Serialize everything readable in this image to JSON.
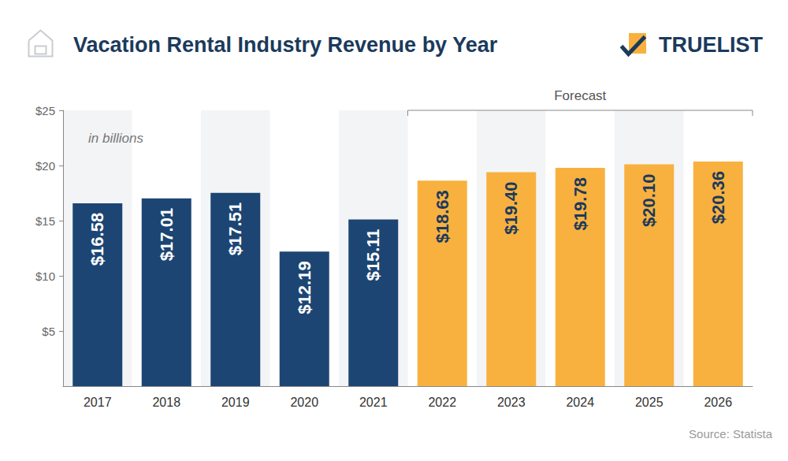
{
  "chart_data": {
    "type": "bar",
    "title": "Vacation Rental Industry Revenue by Year",
    "categories": [
      "2017",
      "2018",
      "2019",
      "2020",
      "2021",
      "2022",
      "2023",
      "2024",
      "2025",
      "2026"
    ],
    "values": [
      16.58,
      17.01,
      17.51,
      12.19,
      15.11,
      18.63,
      19.4,
      19.78,
      20.1,
      20.36
    ],
    "value_labels": [
      "$16.58",
      "$17.01",
      "$17.51",
      "$12.19",
      "$15.11",
      "$18.63",
      "$19.40",
      "$19.78",
      "$20.10",
      "$20.36"
    ],
    "colors": [
      "#1c4573",
      "#1c4573",
      "#1c4573",
      "#1c4573",
      "#1c4573",
      "#f8b13f",
      "#f8b13f",
      "#f8b13f",
      "#f8b13f",
      "#f8b13f"
    ],
    "ylim": [
      0,
      25
    ],
    "yticks": [
      {
        "value": 5,
        "label": "$5"
      },
      {
        "value": 10,
        "label": "$10"
      },
      {
        "value": 15,
        "label": "$15"
      },
      {
        "value": 20,
        "label": "$20"
      },
      {
        "value": 25,
        "label": "$25"
      }
    ],
    "grid": false,
    "data_labels": true,
    "annotations": [
      {
        "text": "in billions"
      },
      {
        "text": "Forecast",
        "from": "2022",
        "to": "2026"
      }
    ],
    "source": "Source: Statista",
    "brand": "TRUELIST"
  }
}
